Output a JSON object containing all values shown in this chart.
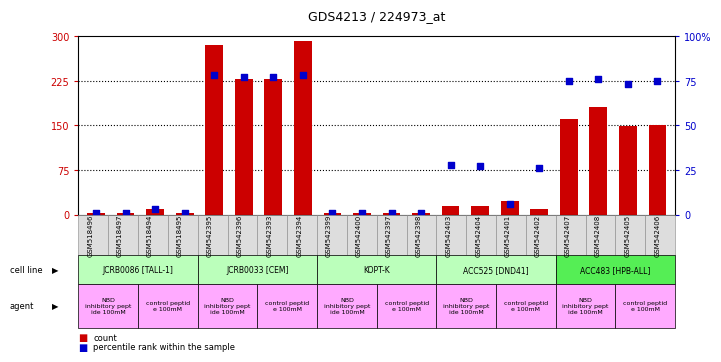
{
  "title": "GDS4213 / 224973_at",
  "samples": [
    "GSM518496",
    "GSM518497",
    "GSM518494",
    "GSM518495",
    "GSM542395",
    "GSM542396",
    "GSM542393",
    "GSM542394",
    "GSM542399",
    "GSM542400",
    "GSM542397",
    "GSM542398",
    "GSM542403",
    "GSM542404",
    "GSM542401",
    "GSM542402",
    "GSM542407",
    "GSM542408",
    "GSM542405",
    "GSM542406"
  ],
  "counts": [
    3,
    3,
    10,
    3,
    285,
    228,
    228,
    292,
    3,
    3,
    3,
    3,
    15,
    15,
    22,
    10,
    160,
    180,
    148,
    150
  ],
  "percentiles": [
    1,
    1,
    3,
    1,
    78,
    77,
    77,
    78,
    1,
    1,
    1,
    1,
    28,
    27,
    6,
    26,
    75,
    76,
    73,
    75
  ],
  "cell_lines": [
    {
      "label": "JCRB0086 [TALL-1]",
      "start": 0,
      "end": 4,
      "color": "#bbffbb"
    },
    {
      "label": "JCRB0033 [CEM]",
      "start": 4,
      "end": 8,
      "color": "#bbffbb"
    },
    {
      "label": "KOPT-K",
      "start": 8,
      "end": 12,
      "color": "#bbffbb"
    },
    {
      "label": "ACC525 [DND41]",
      "start": 12,
      "end": 16,
      "color": "#bbffbb"
    },
    {
      "label": "ACC483 [HPB-ALL]",
      "start": 16,
      "end": 20,
      "color": "#55ee55"
    }
  ],
  "agents": [
    {
      "label": "NBD\ninhibitory pept\nide 100mM",
      "start": 0,
      "end": 2,
      "color": "#ffaaff"
    },
    {
      "label": "control peptid\ne 100mM",
      "start": 2,
      "end": 4,
      "color": "#ffaaff"
    },
    {
      "label": "NBD\ninhibitory pept\nide 100mM",
      "start": 4,
      "end": 6,
      "color": "#ffaaff"
    },
    {
      "label": "control peptid\ne 100mM",
      "start": 6,
      "end": 8,
      "color": "#ffaaff"
    },
    {
      "label": "NBD\ninhibitory pept\nide 100mM",
      "start": 8,
      "end": 10,
      "color": "#ffaaff"
    },
    {
      "label": "control peptid\ne 100mM",
      "start": 10,
      "end": 12,
      "color": "#ffaaff"
    },
    {
      "label": "NBD\ninhibitory pept\nide 100mM",
      "start": 12,
      "end": 14,
      "color": "#ffaaff"
    },
    {
      "label": "control peptid\ne 100mM",
      "start": 14,
      "end": 16,
      "color": "#ffaaff"
    },
    {
      "label": "NBD\ninhibitory pept\nide 100mM",
      "start": 16,
      "end": 18,
      "color": "#ffaaff"
    },
    {
      "label": "control peptid\ne 100mM",
      "start": 18,
      "end": 20,
      "color": "#ffaaff"
    }
  ],
  "ylim_left": [
    0,
    300
  ],
  "ylim_right": [
    0,
    100
  ],
  "yticks_left": [
    0,
    75,
    150,
    225,
    300
  ],
  "yticks_right": [
    0,
    25,
    50,
    75,
    100
  ],
  "yticklabels_right": [
    "0",
    "25",
    "50",
    "75",
    "100%"
  ],
  "bar_color": "#cc0000",
  "dot_color": "#0000cc",
  "bg_color": "#ffffff",
  "left_tick_color": "#cc0000",
  "right_tick_color": "#0000cc",
  "xtick_bg": "#dddddd"
}
